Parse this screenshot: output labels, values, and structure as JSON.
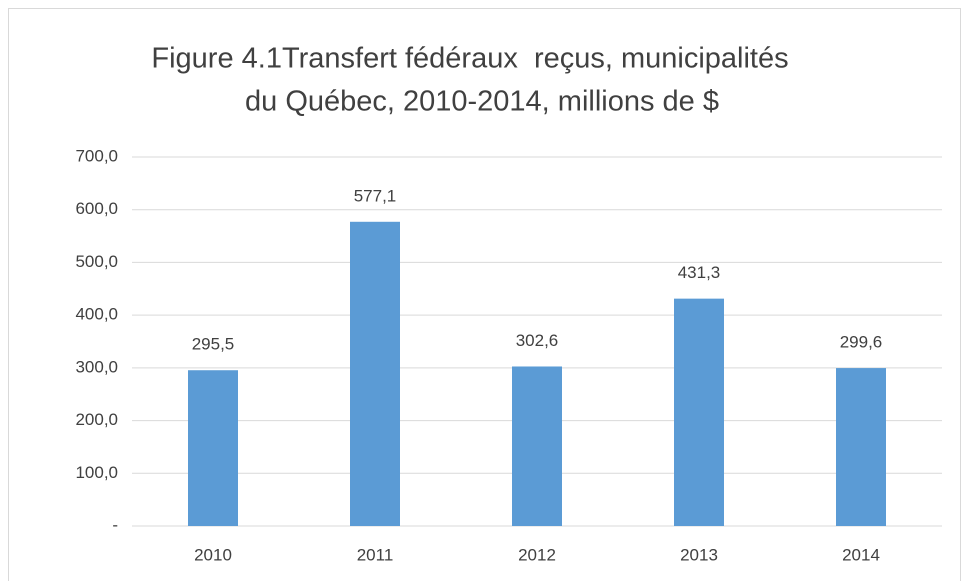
{
  "chart_data": {
    "type": "bar",
    "title": [
      "Figure 4.1Transfert fédéraux  reçus, municipalités",
      "du Québec, 2010-2014, millions de $"
    ],
    "categories": [
      "2010",
      "2011",
      "2012",
      "2013",
      "2014"
    ],
    "values": [
      295.5,
      577.1,
      302.6,
      431.3,
      299.6
    ],
    "value_labels": [
      "295,5",
      "577,1",
      "302,6",
      "431,3",
      "299,6"
    ],
    "color": "#5b9bd5",
    "ylim": [
      0,
      700
    ],
    "yticks": [
      {
        "value": 0,
        "label": "-"
      },
      {
        "value": 100,
        "label": "100,0"
      },
      {
        "value": 200,
        "label": "200,0"
      },
      {
        "value": 300,
        "label": "300,0"
      },
      {
        "value": 400,
        "label": "400,0"
      },
      {
        "value": 500,
        "label": "500,0"
      },
      {
        "value": 600,
        "label": "600,0"
      },
      {
        "value": 700,
        "label": "700,0"
      }
    ],
    "grid": true
  }
}
